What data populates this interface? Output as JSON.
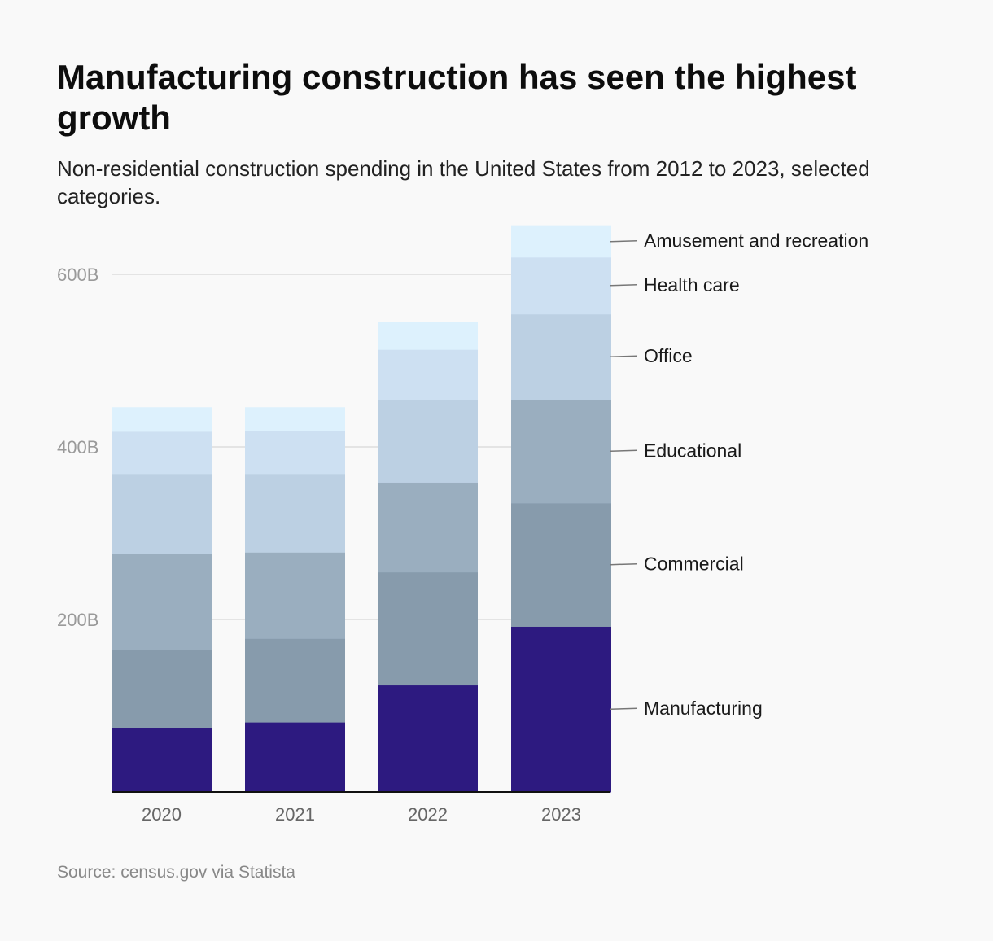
{
  "title": "Manufacturing construction has seen the highest growth",
  "subtitle": "Non-residential construction spending in the United States from 2012 to 2023, selected categories.",
  "source": "Source: census.gov via Statista",
  "chart_data": {
    "type": "bar",
    "stacked": true,
    "categories": [
      "2020",
      "2021",
      "2022",
      "2023"
    ],
    "series": [
      {
        "name": "Manufacturing",
        "color": "#2d1a80",
        "values": [
          75,
          81,
          124,
          192
        ]
      },
      {
        "name": "Commercial",
        "color": "#879bac",
        "values": [
          90,
          97,
          131,
          143
        ]
      },
      {
        "name": "Educational",
        "color": "#9aaebf",
        "values": [
          111,
          100,
          104,
          120
        ]
      },
      {
        "name": "Office",
        "color": "#bcd0e3",
        "values": [
          93,
          91,
          96,
          99
        ]
      },
      {
        "name": "Health care",
        "color": "#cde0f2",
        "values": [
          49,
          50,
          58,
          66
        ]
      },
      {
        "name": "Amusement and recreation",
        "color": "#ddf1fd",
        "values": [
          28,
          27,
          32,
          36
        ]
      }
    ],
    "yticks": [
      200,
      400,
      600
    ],
    "ytick_labels": [
      "200B",
      "400B",
      "600B"
    ],
    "ylim": [
      0,
      660
    ],
    "grid": true,
    "legend": "right, labels beside last bar"
  }
}
